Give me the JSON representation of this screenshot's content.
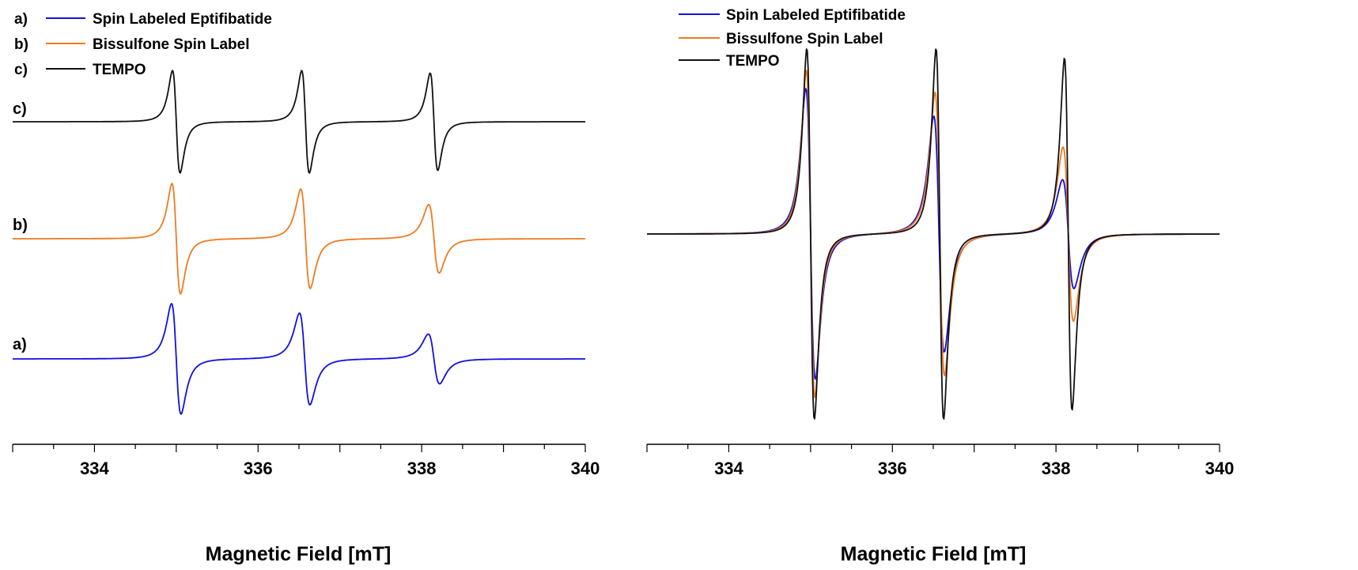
{
  "colors": {
    "spin_labeled_eptifibatide": "#1010e0",
    "bissulfone_spin_label": "#f07a20",
    "tempo": "#111111",
    "axis": "#000000"
  },
  "chart_data": [
    {
      "type": "line",
      "panel": "left-stacked",
      "xlabel": "Magnetic Field [mT]",
      "xlim": [
        333,
        340
      ],
      "xticks": [
        334,
        336,
        338,
        340
      ],
      "xtick_labels": [
        "334",
        "336",
        "338",
        "340"
      ],
      "grid": false,
      "legend": {
        "placement": "top-left",
        "entries": [
          {
            "letter": "a)",
            "label": "Spin Labeled Eptifibatide",
            "color": "#1010e0"
          },
          {
            "letter": "b)",
            "label": "Bissulfone Spin Label",
            "color": "#f07a20"
          },
          {
            "letter": "c)",
            "label": "TEMPO",
            "color": "#111111"
          }
        ]
      },
      "series": [
        {
          "name": "Spin Labeled Eptifibatide",
          "trace_label": "a)",
          "lines": [
            {
              "center": 335.0,
              "amp": 1.0,
              "width": 0.1
            },
            {
              "center": 336.57,
              "amp": 0.83,
              "width": 0.11
            },
            {
              "center": 338.15,
              "amp": 0.45,
              "width": 0.12
            }
          ]
        },
        {
          "name": "Bissulfone Spin Label",
          "trace_label": "b)",
          "lines": [
            {
              "center": 335.0,
              "amp": 1.0,
              "width": 0.09
            },
            {
              "center": 336.58,
              "amp": 0.9,
              "width": 0.1
            },
            {
              "center": 338.15,
              "amp": 0.62,
              "width": 0.11
            }
          ]
        },
        {
          "name": "TEMPO",
          "trace_label": "c)",
          "lines": [
            {
              "center": 335.0,
              "amp": 1.0,
              "width": 0.08
            },
            {
              "center": 336.58,
              "amp": 1.0,
              "width": 0.08
            },
            {
              "center": 338.15,
              "amp": 0.95,
              "width": 0.08
            }
          ]
        }
      ]
    },
    {
      "type": "line",
      "panel": "right-overlay",
      "xlabel": "Magnetic Field [mT]",
      "xlim": [
        333,
        340
      ],
      "xticks": [
        334,
        336,
        338,
        340
      ],
      "xtick_labels": [
        "334",
        "336",
        "338",
        "340"
      ],
      "grid": false,
      "legend": {
        "placement": "top-left",
        "entries": [
          {
            "label": "Spin Labeled Eptifibatide",
            "color": "#1010e0"
          },
          {
            "label": "Bissulfone Spin Label",
            "color": "#f07a20"
          },
          {
            "label": "TEMPO",
            "color": "#111111"
          }
        ]
      },
      "series": [
        {
          "name": "Spin Labeled Eptifibatide",
          "lines": [
            {
              "center": 335.0,
              "amp": 0.8,
              "width": 0.1
            },
            {
              "center": 336.57,
              "amp": 0.65,
              "width": 0.11
            },
            {
              "center": 338.15,
              "amp": 0.3,
              "width": 0.12
            }
          ]
        },
        {
          "name": "Bissulfone Spin Label",
          "lines": [
            {
              "center": 335.0,
              "amp": 0.9,
              "width": 0.09
            },
            {
              "center": 336.58,
              "amp": 0.78,
              "width": 0.1
            },
            {
              "center": 338.15,
              "amp": 0.48,
              "width": 0.11
            }
          ]
        },
        {
          "name": "TEMPO",
          "lines": [
            {
              "center": 335.0,
              "amp": 1.0,
              "width": 0.08
            },
            {
              "center": 336.58,
              "amp": 1.0,
              "width": 0.08
            },
            {
              "center": 338.15,
              "amp": 0.95,
              "width": 0.08
            }
          ]
        }
      ]
    }
  ]
}
